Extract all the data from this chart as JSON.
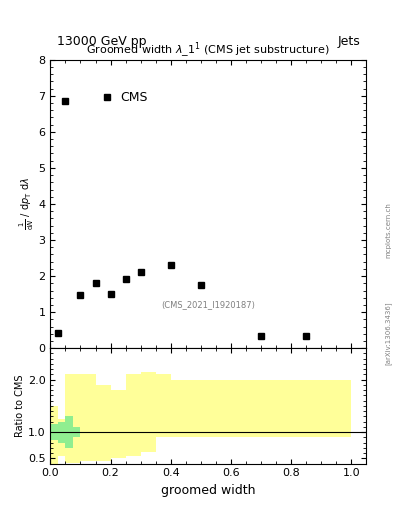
{
  "title_top_left": "13000 GeV pp",
  "title_top_right": "Jets",
  "plot_title": "Groomed width $\\lambda\\_1^1$ (CMS jet substructure)",
  "cms_label": "CMS",
  "watermark": "(CMS_2021_I1920187)",
  "arxiv_label": "[arXiv:1306.3436]",
  "mcplots_label": "mcplots.cern.ch",
  "xlabel": "groomed width",
  "ylabel_main": "$\\frac{1}{\\mathrm{d}N}$ / $\\mathrm{d}p_\\mathrm{T}$ $\\mathrm{d}\\lambda$",
  "ylabel_ratio": "Ratio to CMS",
  "data_x": [
    0.025,
    0.05,
    0.1,
    0.15,
    0.2,
    0.25,
    0.3,
    0.4,
    0.5,
    0.7,
    0.85
  ],
  "data_y": [
    0.42,
    6.85,
    1.48,
    1.82,
    1.49,
    1.93,
    2.12,
    2.31,
    1.76,
    0.35,
    0.35
  ],
  "main_ylim": [
    0,
    8
  ],
  "main_yticks": [
    0,
    1,
    2,
    3,
    4,
    5,
    6,
    7,
    8
  ],
  "ratio_ylim": [
    0.4,
    2.6
  ],
  "ratio_yticks": [
    0.5,
    1,
    2
  ],
  "xlim": [
    0,
    1.05
  ],
  "green_band_x": [
    0.0,
    0.025,
    0.05,
    0.075,
    0.1,
    0.125,
    0.15,
    0.175,
    0.2,
    0.225,
    0.25,
    0.275,
    0.3,
    0.35,
    0.4,
    0.45,
    0.5,
    0.6,
    0.7,
    0.8,
    0.9,
    1.0
  ],
  "green_band_low": [
    0.85,
    0.8,
    0.7,
    0.9,
    1.0,
    1.0,
    1.0,
    1.0,
    1.0,
    1.0,
    1.0,
    1.0,
    1.0,
    1.0,
    1.0,
    1.0,
    1.0,
    1.0,
    1.0,
    1.0,
    1.0,
    1.0
  ],
  "green_band_high": [
    1.15,
    1.2,
    1.3,
    1.1,
    1.0,
    1.0,
    1.0,
    1.0,
    1.0,
    1.0,
    1.0,
    1.0,
    1.0,
    1.0,
    1.0,
    1.0,
    1.0,
    1.0,
    1.0,
    1.0,
    1.0,
    1.0
  ],
  "yellow_band_x_edges": [
    0.0,
    0.025,
    0.05,
    0.1,
    0.15,
    0.2,
    0.25,
    0.3,
    0.35,
    0.4,
    0.45,
    0.5,
    1.0
  ],
  "yellow_band_low": [
    0.4,
    0.55,
    0.42,
    0.45,
    0.44,
    0.5,
    0.55,
    0.62,
    0.9,
    0.9,
    0.9,
    0.9,
    0.9
  ],
  "yellow_band_high": [
    1.5,
    1.25,
    2.1,
    2.1,
    1.9,
    1.8,
    2.1,
    2.15,
    2.1,
    2.0,
    2.0,
    2.0,
    2.0
  ],
  "background_color": "#ffffff",
  "marker_color": "#000000",
  "green_color": "#90ee90",
  "yellow_color": "#ffff99"
}
